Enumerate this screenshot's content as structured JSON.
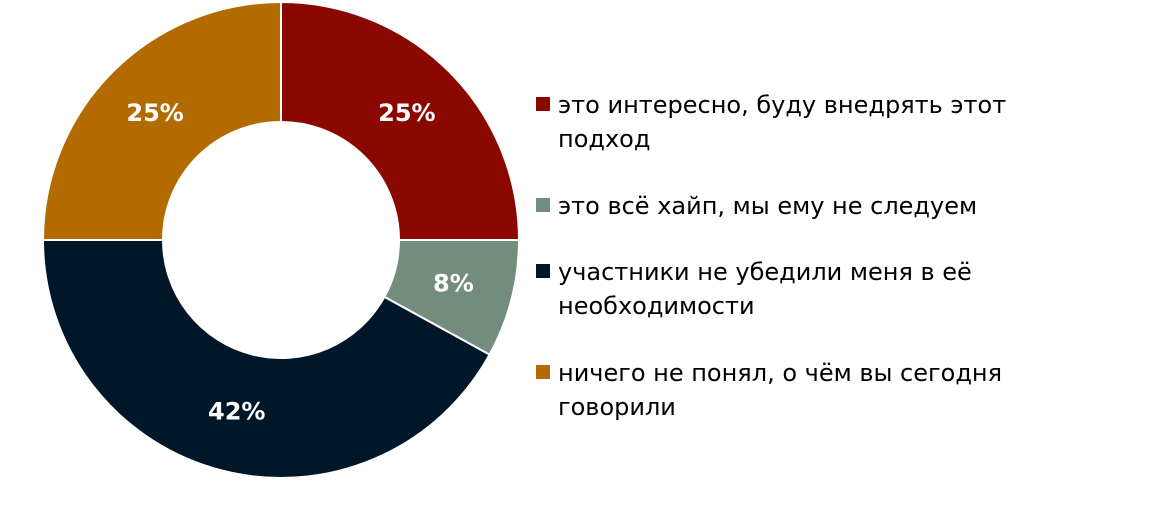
{
  "chart_data": {
    "type": "donut",
    "categories": [
      "это интересно, буду внедрять этот подход",
      "это всё хайп, мы ему не следуем",
      "участники не убедили меня в её необходимости",
      "ничего не понял, о чём вы сегодня говорили"
    ],
    "values": [
      25,
      8,
      42,
      25
    ],
    "value_labels": [
      "25%",
      "8%",
      "42%",
      "25%"
    ],
    "colors": [
      "#8b0800",
      "#728c7e",
      "#001629",
      "#b36b00"
    ],
    "legend": "right"
  }
}
